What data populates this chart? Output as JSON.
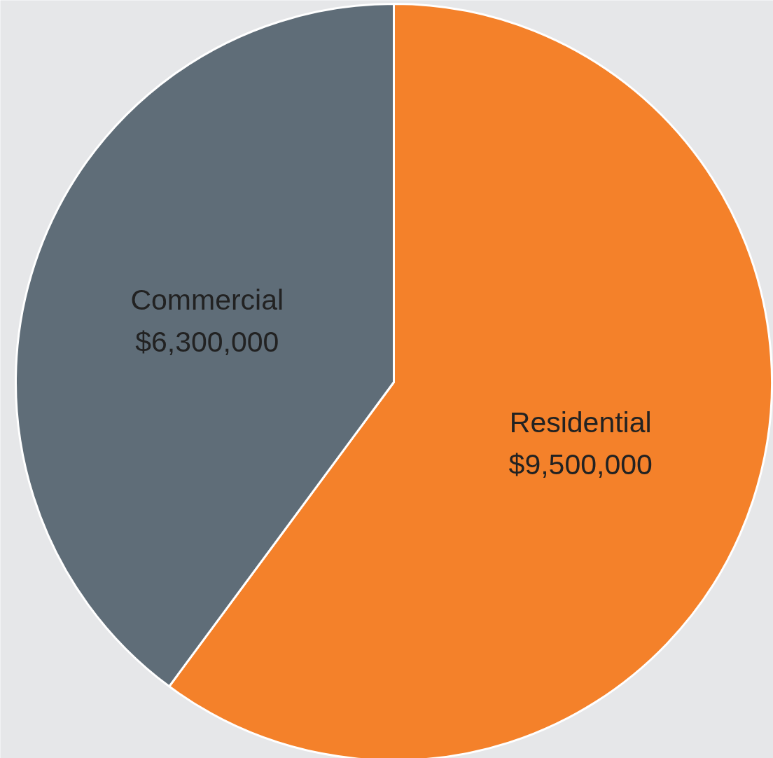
{
  "chart_data": {
    "type": "pie",
    "categories": [
      "Residential",
      "Commercial"
    ],
    "values": [
      9500000,
      6300000
    ],
    "colors": [
      "#f4812a",
      "#5f6d78"
    ],
    "value_labels": [
      "$9,500,000",
      "$6,300,000"
    ]
  }
}
